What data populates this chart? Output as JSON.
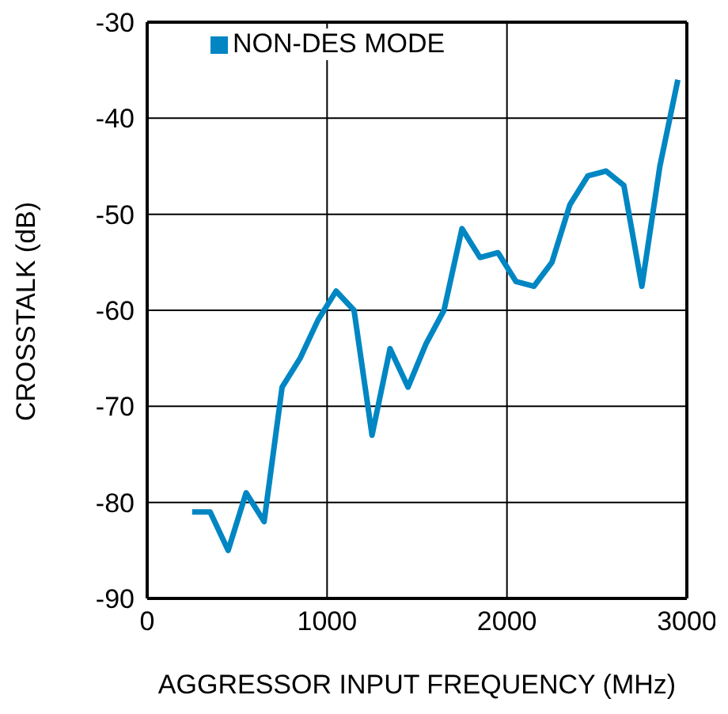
{
  "chart_data": {
    "type": "line",
    "xlabel": "AGGRESSOR INPUT FREQUENCY (MHz)",
    "ylabel": "CROSSTALK (dB)",
    "x": [
      250,
      350,
      450,
      550,
      650,
      750,
      850,
      950,
      1050,
      1150,
      1250,
      1350,
      1450,
      1550,
      1650,
      1750,
      1850,
      1950,
      2050,
      2150,
      2250,
      2350,
      2450,
      2550,
      2650,
      2750,
      2850,
      2950
    ],
    "series": [
      {
        "name": "NON-DES MODE",
        "color": "#0086c3",
        "values": [
          -81,
          -81,
          -85,
          -79,
          -82,
          -68,
          -65,
          -61,
          -58,
          -60,
          -73,
          -64,
          -68,
          -63.5,
          -60,
          -51.5,
          -54.5,
          -54,
          -57,
          -57.5,
          -55,
          -49,
          -46,
          -45.5,
          -47,
          -57.5,
          -45,
          -36
        ]
      }
    ],
    "xlim": [
      0,
      3000
    ],
    "xticks": [
      0,
      1000,
      2000,
      3000
    ],
    "ylim": [
      -90,
      -30
    ],
    "yticks": [
      -90,
      -80,
      -70,
      -60,
      -50,
      -40,
      -30
    ],
    "grid": true,
    "legend": "top left",
    "marker": "none",
    "line_style": "solid"
  }
}
